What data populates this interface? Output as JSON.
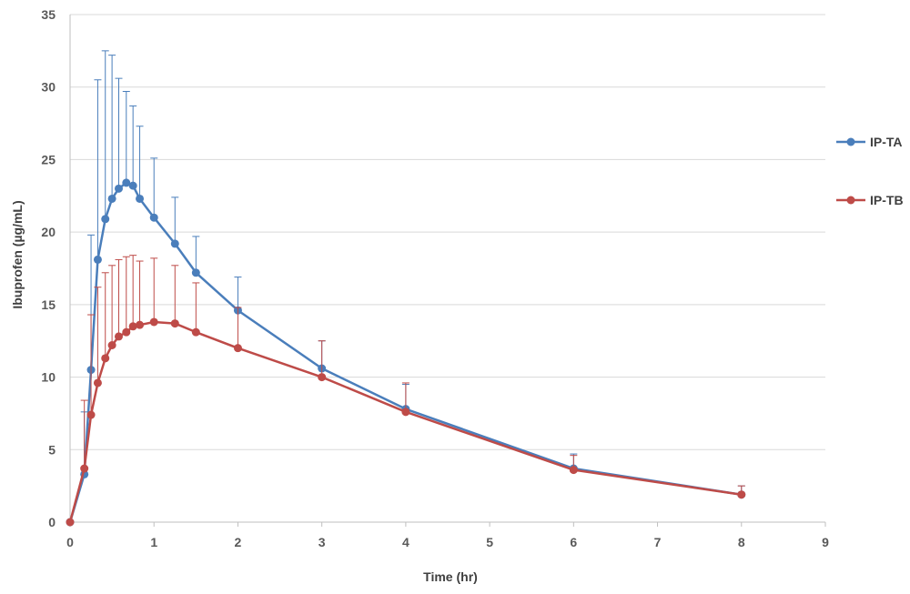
{
  "chart_data": {
    "type": "line",
    "title": "",
    "xlabel": "Time (hr)",
    "ylabel": "Ibuprofen (µg/mL)",
    "xlim": [
      0,
      9
    ],
    "ylim": [
      0,
      35
    ],
    "xticks": [
      0,
      1,
      2,
      3,
      4,
      5,
      6,
      7,
      8,
      9
    ],
    "yticks": [
      0,
      5,
      10,
      15,
      20,
      25,
      30,
      35
    ],
    "grid": "horizontal",
    "legend": "right",
    "x": [
      0,
      0.17,
      0.25,
      0.33,
      0.42,
      0.5,
      0.58,
      0.67,
      0.75,
      0.83,
      1,
      1.25,
      1.5,
      2,
      3,
      4,
      6,
      8
    ],
    "series": [
      {
        "name": "IP-TA",
        "color": "#4a7ebb",
        "values": [
          0,
          3.3,
          10.5,
          18.1,
          20.9,
          22.3,
          23.0,
          23.4,
          23.2,
          22.3,
          21.0,
          19.2,
          17.2,
          14.6,
          10.6,
          7.8,
          3.7,
          1.9
        ],
        "error": [
          0,
          4.3,
          9.3,
          12.4,
          11.6,
          9.9,
          7.6,
          6.3,
          5.5,
          5.0,
          4.1,
          3.2,
          2.5,
          2.3,
          1.9,
          1.7,
          1.0,
          0.6
        ]
      },
      {
        "name": "IP-TB",
        "color": "#be4b48",
        "values": [
          0,
          3.7,
          7.4,
          9.6,
          11.3,
          12.2,
          12.8,
          13.1,
          13.5,
          13.6,
          13.8,
          13.7,
          13.1,
          12.0,
          10.0,
          7.6,
          3.6,
          1.9
        ],
        "error": [
          0,
          4.7,
          6.9,
          6.6,
          5.9,
          5.5,
          5.3,
          5.2,
          4.9,
          4.4,
          4.4,
          4.0,
          3.4,
          2.8,
          2.5,
          2.0,
          1.0,
          0.6
        ]
      }
    ]
  }
}
